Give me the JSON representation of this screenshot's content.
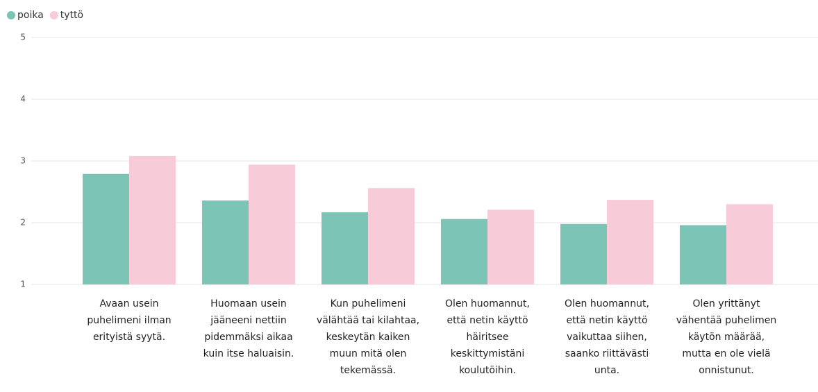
{
  "chart_data": {
    "type": "bar",
    "categories": [
      "Avaan usein puhelimeni ilman erityistä syytä.",
      "Huomaan usein jääneeni nettiin pidemmäksi aikaa kuin itse haluaisin.",
      "Kun puhelimeni välähtää tai kilahtaa, keskeytän kaiken muun mitä olen tekemässä.",
      "Olen huomannut, että netin käyttö häiritsee keskittymistäni koulutöihin.",
      "Olen huomannut, että netin käyttö vaikuttaa siihen, saanko riittävästi unta.",
      "Olen yrittänyt vähentää puhelimen käytön määrää, mutta en ole vielä onnistunut."
    ],
    "series": [
      {
        "name": "poika",
        "color": "#7cc4b5",
        "values": [
          2.79,
          2.36,
          2.17,
          2.06,
          1.98,
          1.96
        ]
      },
      {
        "name": "tyttö",
        "color": "#f8cbd9",
        "values": [
          3.08,
          2.94,
          2.56,
          2.21,
          2.37,
          2.3
        ]
      }
    ],
    "ylim": [
      1,
      5
    ],
    "yticks": [
      1,
      2,
      3,
      4,
      5
    ],
    "grid": true,
    "legend": "top-left"
  }
}
